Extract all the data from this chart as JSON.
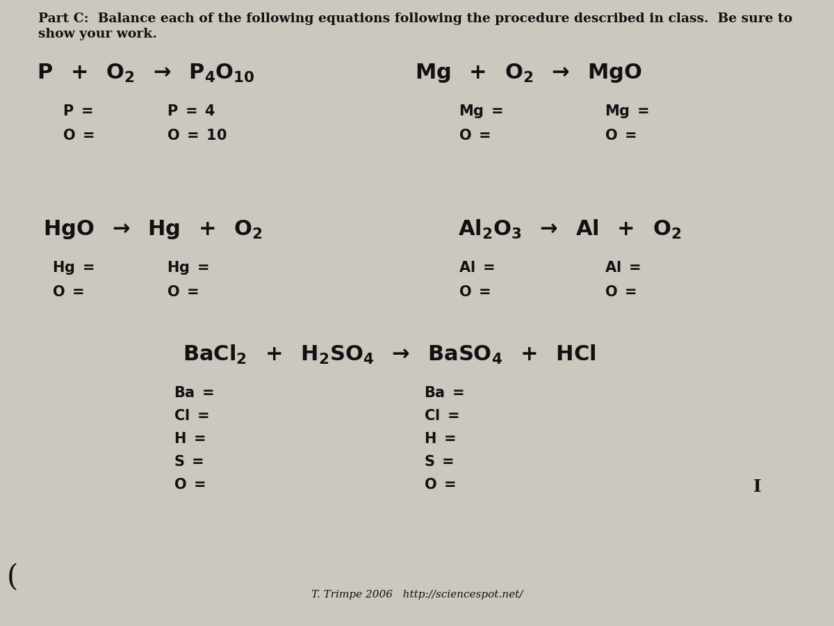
{
  "background_color": "#ccc8c0",
  "title_line1": "Part C:  Balance each of the following equations following the procedure described in class.  Be sure to",
  "title_line2": "show your work.",
  "title_fontsize": 13.5,
  "title_color": "#111111",
  "eq_fontsize": 22,
  "label_fontsize": 15,
  "footer": "T. Trimpe 2006   http://sciencespot.net/",
  "footer_fontsize": 11
}
